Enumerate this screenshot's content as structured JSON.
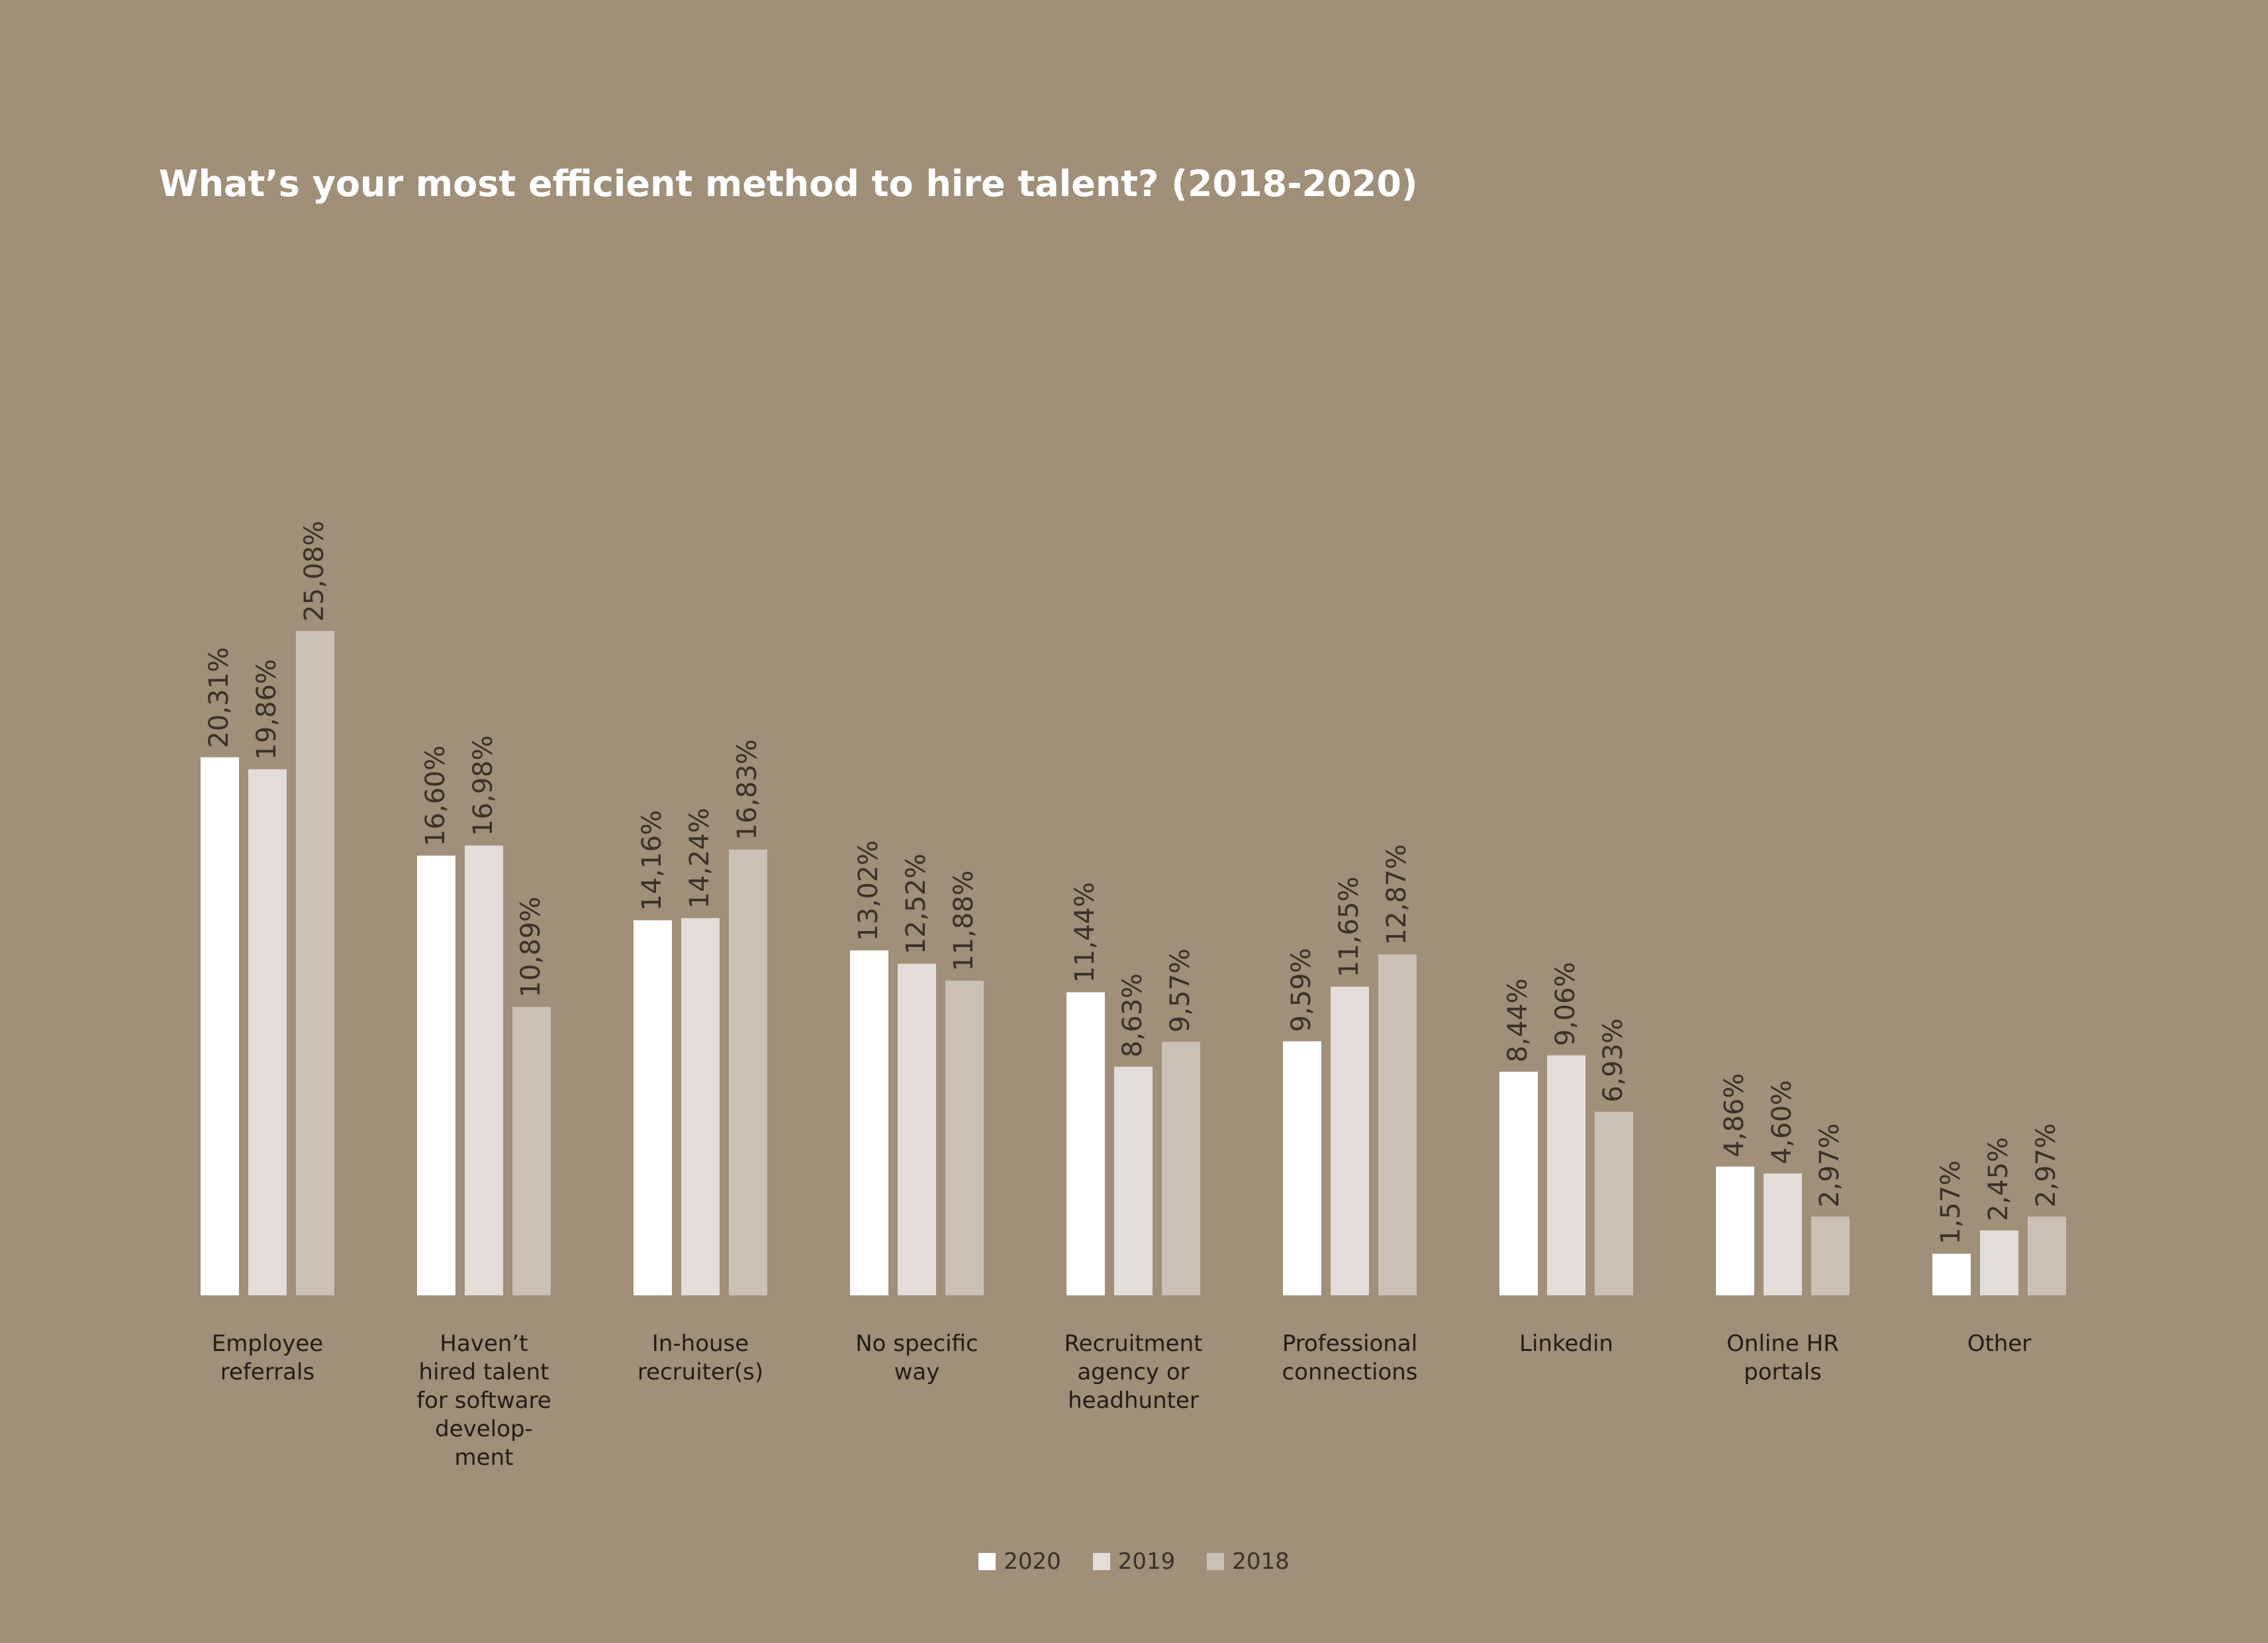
{
  "colors": {
    "background": "#a08f79",
    "series_2020": "#ffffff",
    "series_2019": "#e2ddd8",
    "series_2018": "#cbc0b5",
    "value_label": "#3a3128",
    "category_label": "#241d16"
  },
  "legend": [
    {
      "label": "2020",
      "color": "#ffffff"
    },
    {
      "label": "2019",
      "color": "#e2ddd8"
    },
    {
      "label": "2018",
      "color": "#cbc0b5"
    }
  ],
  "chart_data": {
    "type": "bar",
    "title": "What’s your most efficient method to hire talent? (2018-2020)",
    "xlabel": "",
    "ylabel": "",
    "ylim": [
      0,
      25.08
    ],
    "grid": false,
    "legend_position": "bottom-center",
    "value_labels_rotated": true,
    "categories": [
      [
        "Employee",
        "referrals"
      ],
      [
        "Haven’t",
        "hired talent",
        "for software",
        "develop-",
        "ment"
      ],
      [
        "In-house",
        "recruiter(s)"
      ],
      [
        "No specific",
        "way"
      ],
      [
        "Recruitment",
        "agency or",
        "headhunter"
      ],
      [
        "Professional",
        "connections"
      ],
      [
        "Linkedin"
      ],
      [
        "Online HR",
        "portals"
      ],
      [
        "Other"
      ]
    ],
    "series": [
      {
        "name": "2020",
        "color": "#ffffff",
        "values": [
          20.31,
          16.6,
          14.16,
          13.02,
          11.44,
          9.59,
          8.44,
          4.86,
          1.57
        ],
        "labels": [
          "20,31%",
          "16,60%",
          "14,16%",
          "13,02%",
          "11,44%",
          "9,59%",
          "8,44%",
          "4,86%",
          "1,57%"
        ]
      },
      {
        "name": "2019",
        "color": "#e2ddd8",
        "values": [
          19.86,
          16.98,
          14.24,
          12.52,
          8.63,
          11.65,
          9.06,
          4.6,
          2.45
        ],
        "labels": [
          "19,86%",
          "16,98%",
          "14,24%",
          "12,52%",
          "8,63%",
          "11,65%",
          "9,06%",
          "4,60%",
          "2,45%"
        ]
      },
      {
        "name": "2018",
        "color": "#cbc0b5",
        "values": [
          25.08,
          10.89,
          16.83,
          11.88,
          9.57,
          12.87,
          6.93,
          2.97,
          2.97
        ],
        "labels": [
          "25,08%",
          "10,89%",
          "16,83%",
          "11,88%",
          "9,57%",
          "12,87%",
          "6,93%",
          "2,97%",
          "2,97%"
        ]
      }
    ]
  }
}
